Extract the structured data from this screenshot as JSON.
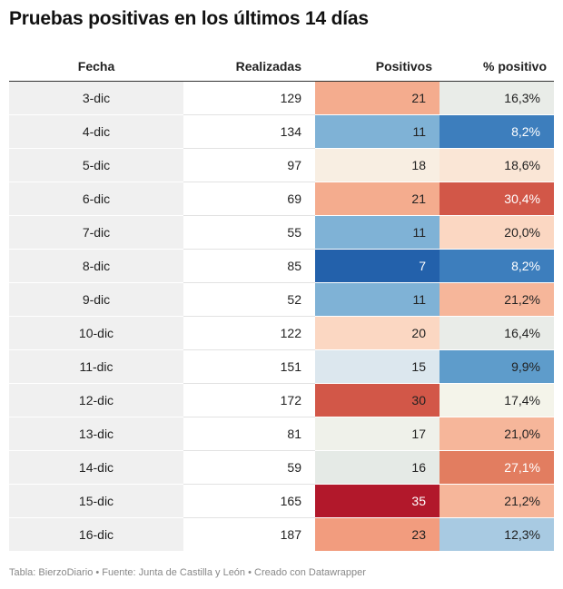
{
  "title": "Pruebas positivas en los últimos 14 días",
  "footer": "Tabla: BierzoDiario • Fuente: Junta de Castilla y León • Creado con Datawrapper",
  "chart_data": {
    "type": "table",
    "title": "Pruebas positivas en los últimos 14 días",
    "columns": [
      "Fecha",
      "Realizadas",
      "Positivos",
      "% positivo"
    ],
    "rows": [
      {
        "fecha": "3-dic",
        "realizadas": "129",
        "positivos": "21",
        "pct": "16,3%",
        "pos_color": "#f4ac8e",
        "pct_color": "#e9ece8"
      },
      {
        "fecha": "4-dic",
        "realizadas": "134",
        "positivos": "11",
        "pct": "8,2%",
        "pos_color": "#7fb2d6",
        "pct_color": "#3d7ebd"
      },
      {
        "fecha": "5-dic",
        "realizadas": "97",
        "positivos": "18",
        "pct": "18,6%",
        "pos_color": "#f8eee2",
        "pct_color": "#fae6d6"
      },
      {
        "fecha": "6-dic",
        "realizadas": "69",
        "positivos": "21",
        "pct": "30,4%",
        "pos_color": "#f4ac8e",
        "pct_color": "#d25748"
      },
      {
        "fecha": "7-dic",
        "realizadas": "55",
        "positivos": "11",
        "pct": "20,0%",
        "pos_color": "#7fb2d6",
        "pct_color": "#fbd7c2"
      },
      {
        "fecha": "8-dic",
        "realizadas": "85",
        "positivos": "7",
        "pct": "8,2%",
        "pos_color": "#2361ab",
        "pct_color": "#3d7ebd"
      },
      {
        "fecha": "9-dic",
        "realizadas": "52",
        "positivos": "11",
        "pct": "21,2%",
        "pos_color": "#7fb2d6",
        "pct_color": "#f6b69a"
      },
      {
        "fecha": "10-dic",
        "realizadas": "122",
        "positivos": "20",
        "pct": "16,4%",
        "pos_color": "#fbd7c2",
        "pct_color": "#e9ece8"
      },
      {
        "fecha": "11-dic",
        "realizadas": "151",
        "positivos": "15",
        "pct": "9,9%",
        "pos_color": "#dce7ee",
        "pct_color": "#5e9ccb"
      },
      {
        "fecha": "12-dic",
        "realizadas": "172",
        "positivos": "30",
        "pct": "17,4%",
        "pos_color": "#d25748",
        "pct_color": "#f4f4ea"
      },
      {
        "fecha": "13-dic",
        "realizadas": "81",
        "positivos": "17",
        "pct": "21,0%",
        "pos_color": "#eff1ea",
        "pct_color": "#f6b69a"
      },
      {
        "fecha": "14-dic",
        "realizadas": "59",
        "positivos": "16",
        "pct": "27,1%",
        "pos_color": "#e5eae6",
        "pct_color": "#e27d60"
      },
      {
        "fecha": "15-dic",
        "realizadas": "165",
        "positivos": "35",
        "pct": "21,2%",
        "pos_color": "#b2182b",
        "pct_color": "#f6b69a"
      },
      {
        "fecha": "16-dic",
        "realizadas": "187",
        "positivos": "23",
        "pct": "12,3%",
        "pos_color": "#f29c7e",
        "pct_color": "#a8cae2"
      }
    ],
    "dark_cells": [
      {
        "row": 1,
        "col": "pct"
      },
      {
        "row": 3,
        "col": "pct"
      },
      {
        "row": 5,
        "col": "pos"
      },
      {
        "row": 5,
        "col": "pct"
      },
      {
        "row": 11,
        "col": "pct"
      },
      {
        "row": 12,
        "col": "pos"
      }
    ]
  }
}
